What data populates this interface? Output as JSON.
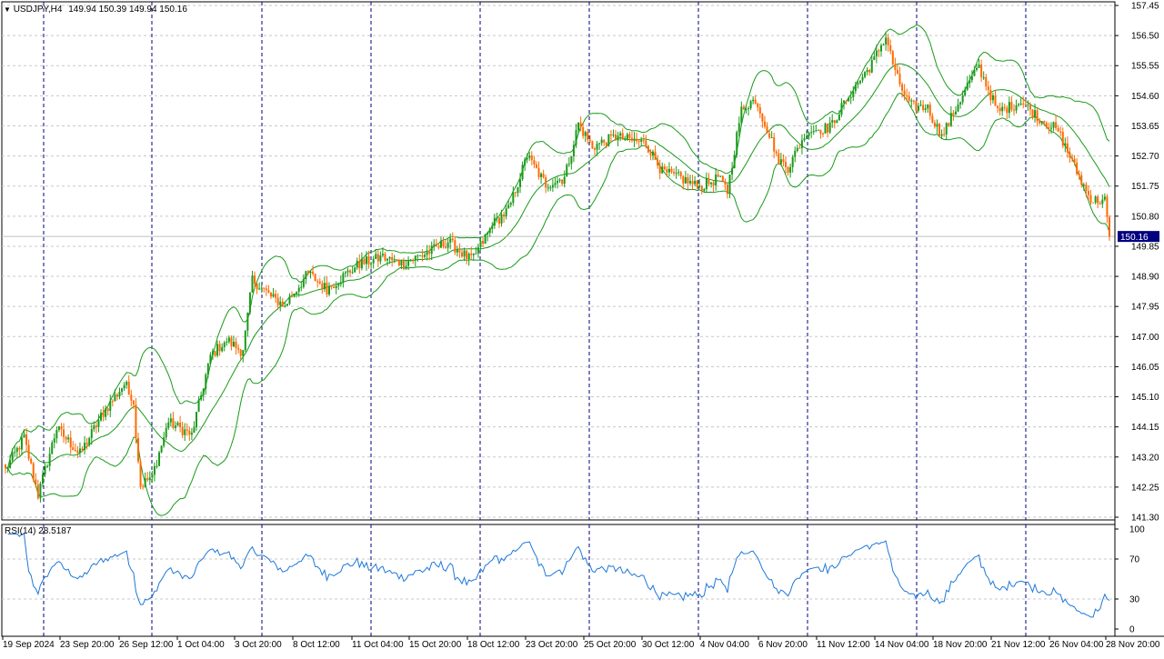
{
  "header": {
    "symbol": "USDJPY,H4",
    "ohlc": "149.94 150.39 149.94 150.16"
  },
  "rsi_header": {
    "label": "RSI(14) 28.5187"
  },
  "colors": {
    "bull": "#1a9a1a",
    "bear": "#ff6a00",
    "bands": "#1a9a1a",
    "rsi": "#1e78d8",
    "grid": "#c8c8c8",
    "vline": "#000080",
    "price_tag": "#000080"
  },
  "chart_data": [
    {
      "type": "candlestick",
      "title": "USDJPY,H4",
      "ylim": [
        141.3,
        157.45
      ],
      "yticks": [
        "157.45",
        "156.50",
        "155.55",
        "154.60",
        "153.65",
        "152.70",
        "151.75",
        "150.80",
        "149.85",
        "148.90",
        "147.95",
        "147.00",
        "146.05",
        "145.10",
        "144.15",
        "143.20",
        "142.25",
        "141.30"
      ],
      "last_price": "150.16",
      "xticks": [
        "19 Sep 2024",
        "23 Sep 20:00",
        "26 Sep 12:00",
        "1 Oct 04:00",
        "3 Oct 20:00",
        "8 Oct 12:00",
        "11 Oct 04:00",
        "15 Oct 20:00",
        "18 Oct 12:00",
        "23 Oct 20:00",
        "25 Oct 20:00",
        "30 Oct 12:00",
        "4 Nov 04:00",
        "6 Nov 20:00",
        "11 Nov 12:00",
        "14 Nov 04:00",
        "18 Nov 20:00",
        "21 Nov 12:00",
        "26 Nov 04:00",
        "28 Nov 20:00"
      ],
      "indicators": [
        "Bollinger Bands"
      ],
      "path_keypoints": [
        {
          "bar": 0,
          "close": 142.8
        },
        {
          "bar": 8,
          "close": 143.8
        },
        {
          "bar": 14,
          "close": 142.0
        },
        {
          "bar": 22,
          "close": 144.1
        },
        {
          "bar": 32,
          "close": 143.3
        },
        {
          "bar": 42,
          "close": 144.6
        },
        {
          "bar": 52,
          "close": 145.6
        },
        {
          "bar": 55,
          "close": 144.8
        },
        {
          "bar": 58,
          "close": 142.3
        },
        {
          "bar": 63,
          "close": 142.6
        },
        {
          "bar": 70,
          "close": 144.3
        },
        {
          "bar": 80,
          "close": 143.9
        },
        {
          "bar": 88,
          "close": 146.4
        },
        {
          "bar": 95,
          "close": 146.9
        },
        {
          "bar": 102,
          "close": 146.5
        },
        {
          "bar": 106,
          "close": 148.8
        },
        {
          "bar": 115,
          "close": 148.2
        },
        {
          "bar": 120,
          "close": 148.0
        },
        {
          "bar": 130,
          "close": 149.0
        },
        {
          "bar": 138,
          "close": 148.5
        },
        {
          "bar": 152,
          "close": 149.3
        },
        {
          "bar": 162,
          "close": 149.5
        },
        {
          "bar": 170,
          "close": 149.3
        },
        {
          "bar": 180,
          "close": 149.6
        },
        {
          "bar": 190,
          "close": 150.0
        },
        {
          "bar": 200,
          "close": 149.4
        },
        {
          "bar": 210,
          "close": 150.6
        },
        {
          "bar": 216,
          "close": 151.0
        },
        {
          "bar": 224,
          "close": 152.7
        },
        {
          "bar": 232,
          "close": 151.8
        },
        {
          "bar": 240,
          "close": 152.0
        },
        {
          "bar": 246,
          "close": 153.7
        },
        {
          "bar": 252,
          "close": 153.0
        },
        {
          "bar": 262,
          "close": 153.3
        },
        {
          "bar": 275,
          "close": 153.1
        },
        {
          "bar": 282,
          "close": 152.2
        },
        {
          "bar": 290,
          "close": 152.0
        },
        {
          "bar": 298,
          "close": 151.7
        },
        {
          "bar": 306,
          "close": 152.0
        },
        {
          "bar": 310,
          "close": 151.6
        },
        {
          "bar": 316,
          "close": 154.2
        },
        {
          "bar": 322,
          "close": 154.5
        },
        {
          "bar": 332,
          "close": 152.6
        },
        {
          "bar": 336,
          "close": 152.3
        },
        {
          "bar": 344,
          "close": 153.5
        },
        {
          "bar": 354,
          "close": 153.6
        },
        {
          "bar": 362,
          "close": 154.6
        },
        {
          "bar": 372,
          "close": 155.6
        },
        {
          "bar": 378,
          "close": 156.5
        },
        {
          "bar": 382,
          "close": 155.3
        },
        {
          "bar": 388,
          "close": 154.3
        },
        {
          "bar": 396,
          "close": 154.2
        },
        {
          "bar": 402,
          "close": 153.3
        },
        {
          "bar": 412,
          "close": 154.8
        },
        {
          "bar": 418,
          "close": 155.5
        },
        {
          "bar": 426,
          "close": 154.1
        },
        {
          "bar": 436,
          "close": 154.4
        },
        {
          "bar": 444,
          "close": 153.9
        },
        {
          "bar": 452,
          "close": 153.5
        },
        {
          "bar": 458,
          "close": 152.5
        },
        {
          "bar": 466,
          "close": 151.3
        },
        {
          "bar": 472,
          "close": 151.3
        },
        {
          "bar": 474,
          "close": 150.16
        }
      ]
    },
    {
      "type": "line",
      "title": "RSI(14) 28.5187",
      "ylim": [
        0,
        100
      ],
      "yticks": [
        "100",
        "70",
        "30",
        "0"
      ],
      "levels": [
        30,
        70
      ],
      "last_value": 28.5187
    }
  ]
}
